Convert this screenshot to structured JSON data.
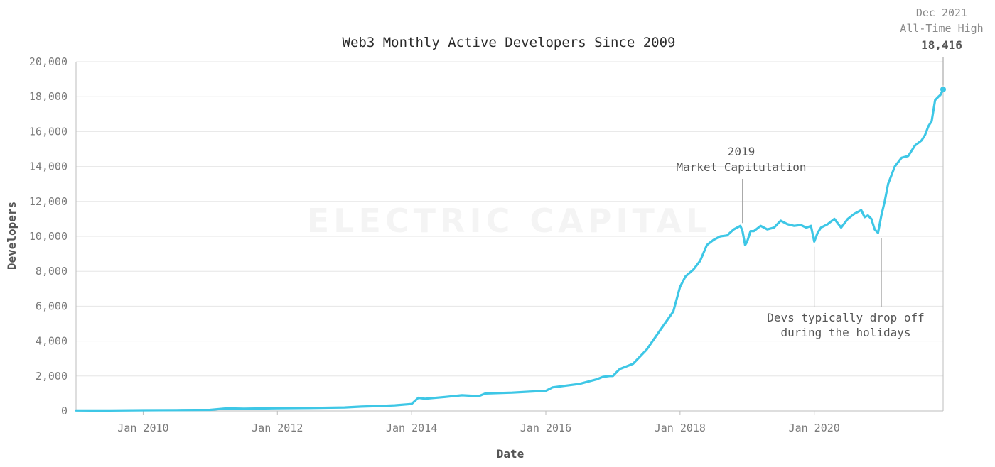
{
  "chart_data": {
    "type": "line",
    "title": "Web3 Monthly Active Developers Since 2009",
    "xlabel": "Date",
    "ylabel": "Developers",
    "ylim": [
      0,
      20000
    ],
    "xlim": [
      2009.0,
      2021.92
    ],
    "y_ticks": [
      0,
      2000,
      4000,
      6000,
      8000,
      10000,
      12000,
      14000,
      16000,
      18000,
      20000
    ],
    "y_tick_labels": [
      "0",
      "2,000",
      "4,000",
      "6,000",
      "8,000",
      "10,000",
      "12,000",
      "14,000",
      "16,000",
      "18,000",
      "20,000"
    ],
    "x_ticks": [
      2010.0,
      2012.0,
      2014.0,
      2016.0,
      2018.0,
      2020.0
    ],
    "x_tick_labels": [
      "Jan 2010",
      "Jan 2012",
      "Jan 2014",
      "Jan 2016",
      "Jan 2018",
      "Jan 2020"
    ],
    "grid": true,
    "line_color": "#3ec7e6",
    "series": [
      {
        "name": "Developers",
        "x": [
          2009.0,
          2009.5,
          2010.0,
          2010.5,
          2011.0,
          2011.25,
          2011.5,
          2012.0,
          2012.5,
          2013.0,
          2013.25,
          2013.5,
          2013.75,
          2014.0,
          2014.1,
          2014.2,
          2014.5,
          2014.75,
          2015.0,
          2015.1,
          2015.5,
          2015.75,
          2016.0,
          2016.1,
          2016.5,
          2016.75,
          2016.85,
          2016.95,
          2017.0,
          2017.1,
          2017.3,
          2017.5,
          2017.7,
          2017.9,
          2018.0,
          2018.08,
          2018.2,
          2018.3,
          2018.4,
          2018.5,
          2018.6,
          2018.7,
          2018.8,
          2018.9,
          2018.93,
          2018.97,
          2019.0,
          2019.05,
          2019.1,
          2019.2,
          2019.3,
          2019.4,
          2019.5,
          2019.6,
          2019.7,
          2019.8,
          2019.88,
          2019.95,
          2020.0,
          2020.05,
          2020.1,
          2020.2,
          2020.3,
          2020.4,
          2020.5,
          2020.6,
          2020.7,
          2020.75,
          2020.8,
          2020.85,
          2020.9,
          2020.95,
          2021.0,
          2021.05,
          2021.1,
          2021.2,
          2021.3,
          2021.4,
          2021.5,
          2021.6,
          2021.65,
          2021.7,
          2021.75,
          2021.8,
          2021.85,
          2021.88,
          2021.92
        ],
        "values": [
          30,
          25,
          40,
          50,
          60,
          150,
          130,
          160,
          170,
          200,
          250,
          280,
          320,
          400,
          750,
          700,
          800,
          900,
          850,
          1000,
          1050,
          1100,
          1150,
          1350,
          1550,
          1800,
          1950,
          2000,
          2000,
          2400,
          2700,
          3500,
          4600,
          5700,
          7100,
          7700,
          8100,
          8600,
          9500,
          9800,
          10000,
          10050,
          10400,
          10600,
          10300,
          9500,
          9700,
          10300,
          10300,
          10600,
          10400,
          10500,
          10900,
          10700,
          10600,
          10650,
          10500,
          10600,
          9700,
          10200,
          10500,
          10700,
          11000,
          10500,
          11000,
          11300,
          11500,
          11100,
          11200,
          11000,
          10400,
          10200,
          11200,
          12000,
          13000,
          14000,
          14500,
          14600,
          15200,
          15500,
          15800,
          16300,
          16600,
          17800,
          18000,
          18100,
          18416
        ]
      }
    ],
    "annotations": {
      "peak": {
        "line1": "Dec 2021",
        "line2": "All-Time High",
        "value": "18,416",
        "x": 2021.92,
        "y": 18416
      },
      "capitulation": {
        "line1": "2019",
        "line2": "Market Capitulation",
        "x": 2018.93
      },
      "holidays": {
        "line1": "Devs typically drop off",
        "line2": "during the holidays",
        "x1": 2020.0,
        "x2": 2021.0
      }
    },
    "watermark": "ELECTRIC CAPITAL"
  }
}
